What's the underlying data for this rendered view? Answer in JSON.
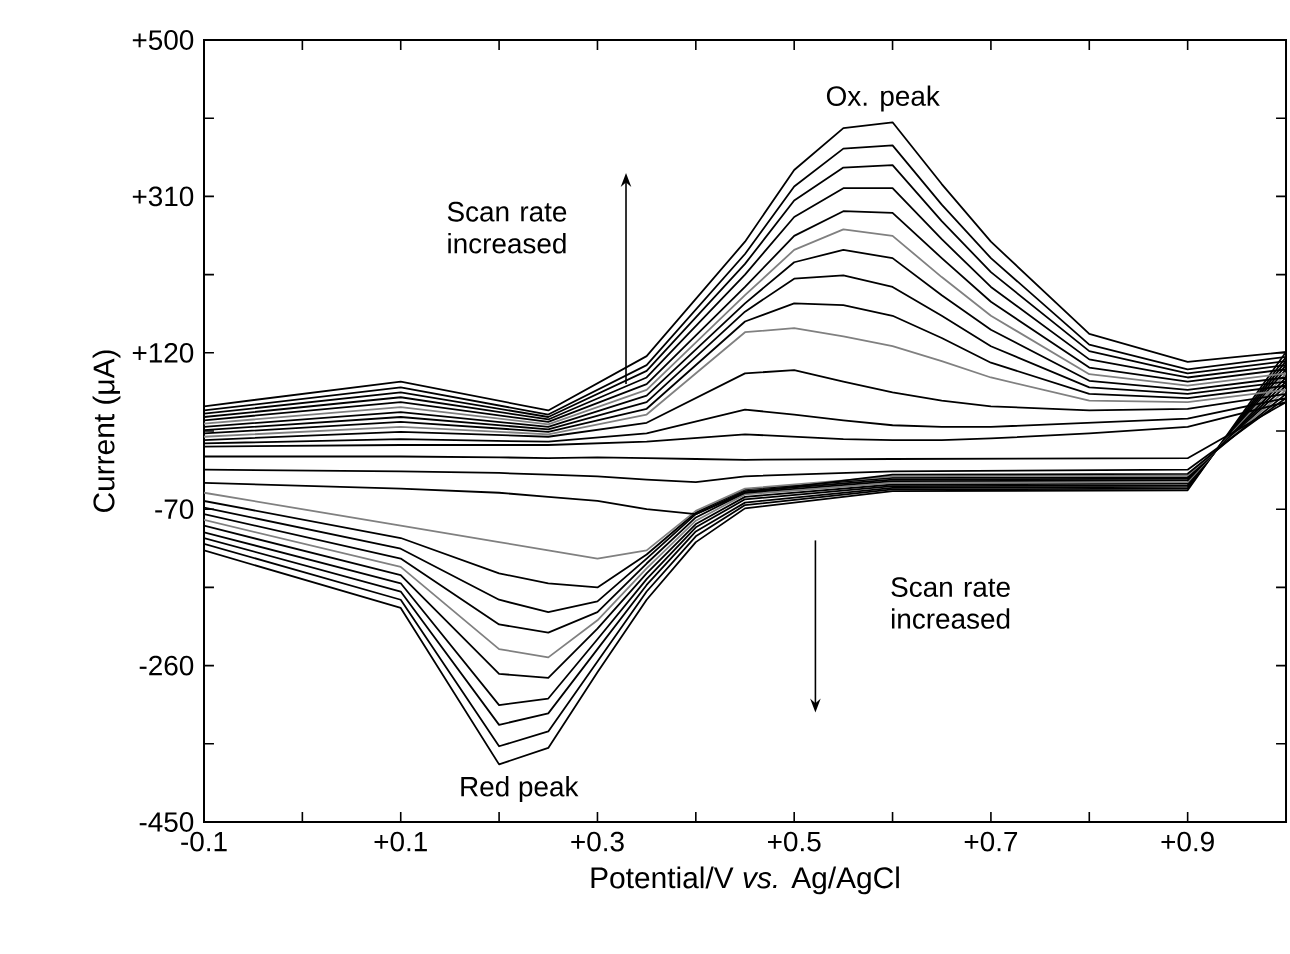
{
  "chart_data": {
    "type": "line",
    "xlabel": "Potential/V *vs.* Ag/AgCl",
    "ylabel": "Current (μA)",
    "x": [
      -0.1,
      0.1,
      0.25,
      0.35,
      0.45,
      0.5,
      0.55,
      0.6,
      0.65,
      0.7,
      0.8,
      0.9,
      1.0,
      0.9,
      0.6,
      0.45,
      0.4,
      0.35,
      0.3,
      0.25,
      0.2,
      0.1,
      -0.1
    ],
    "series": [
      {
        "color": "#000000",
        "values": [
          55,
          85,
          50,
          116,
          255,
          342,
          393,
          400,
          325,
          255,
          143,
          109,
          121,
          -47,
          -48,
          -69,
          -110,
          -180,
          -268,
          -360,
          -380,
          -190,
          -120
        ]
      },
      {
        "color": "#000000",
        "values": [
          50,
          78,
          45,
          105,
          240,
          322,
          368,
          372,
          300,
          235,
          130,
          100,
          115,
          -45,
          -46,
          -65,
          -103,
          -170,
          -255,
          -340,
          -358,
          -180,
          -112
        ]
      },
      {
        "color": "#000000",
        "values": [
          46,
          72,
          42,
          98,
          228,
          305,
          345,
          348,
          280,
          218,
          122,
          95,
          110,
          -43,
          -44,
          -62,
          -97,
          -162,
          -240,
          -318,
          -332,
          -170,
          -105
        ]
      },
      {
        "color": "#000000",
        "values": [
          42,
          66,
          39,
          90,
          215,
          285,
          320,
          320,
          258,
          200,
          112,
          90,
          105,
          -41,
          -42,
          -58,
          -92,
          -155,
          -228,
          -300,
          -308,
          -160,
          -98
        ]
      },
      {
        "color": "#000000",
        "values": [
          38,
          60,
          36,
          82,
          200,
          262,
          292,
          290,
          235,
          182,
          102,
          85,
          100,
          -39,
          -40,
          -55,
          -88,
          -148,
          -215,
          -275,
          -270,
          -150,
          -90
        ]
      },
      {
        "color": "#808080",
        "values": [
          34,
          54,
          33,
          75,
          190,
          245,
          270,
          262,
          212,
          165,
          94,
          80,
          95,
          -37,
          -38,
          -52,
          -84,
          -142,
          -205,
          -250,
          -240,
          -140,
          -83
        ]
      },
      {
        "color": "#000000",
        "values": [
          30,
          48,
          30,
          68,
          180,
          230,
          245,
          235,
          190,
          148,
          86,
          75,
          90,
          -35,
          -36,
          -50,
          -80,
          -136,
          -195,
          -220,
          -210,
          -130,
          -76
        ]
      },
      {
        "color": "#000000",
        "values": [
          26,
          42,
          27,
          60,
          170,
          210,
          214,
          200,
          165,
          128,
          78,
          70,
          85,
          -33,
          -34,
          -48,
          -76,
          -130,
          -182,
          -195,
          -180,
          -118,
          -68
        ]
      },
      {
        "color": "#000000",
        "values": [
          22,
          36,
          24,
          52,
          158,
          180,
          178,
          165,
          138,
          108,
          70,
          65,
          80,
          -31,
          -32,
          -46,
          -74,
          -125,
          -165,
          -160,
          -148,
          -105,
          -60
        ]
      },
      {
        "color": "#808080",
        "values": [
          18,
          30,
          21,
          45,
          145,
          150,
          140,
          128,
          110,
          90,
          62,
          60,
          75,
          -29,
          -30,
          -45,
          -72,
          -120,
          -130,
          -120,
          -110,
          -90,
          -50
        ]
      },
      {
        "color": "#000000",
        "values": [
          14,
          24,
          18,
          35,
          95,
          99,
          85,
          72,
          62,
          55,
          50,
          52,
          70,
          -27,
          -28,
          -50,
          -76,
          -70,
          -60,
          -55,
          -50,
          -45,
          -38
        ]
      },
      {
        "color": "#000000",
        "values": [
          10,
          15,
          12,
          22,
          51,
          45,
          38,
          32,
          30,
          30,
          35,
          40,
          65,
          -22,
          -24,
          -30,
          -37,
          -34,
          -30,
          -28,
          -26,
          -24,
          -22
        ]
      },
      {
        "color": "#000000",
        "values": [
          6,
          8,
          8,
          12,
          21,
          18,
          15,
          14,
          14,
          16,
          22,
          30,
          60,
          -8,
          -9,
          -10,
          -9,
          -8,
          -7,
          -8,
          -7,
          -6,
          -6
        ]
      }
    ],
    "xlim": [
      -0.1,
      1.0
    ],
    "ylim": [
      -450,
      500
    ],
    "xticks": [
      -0.1,
      {
        "value": 0,
        "label": null
      },
      {
        "value": 0.1,
        "label": "+0.1"
      },
      {
        "value": 0.2,
        "label": null
      },
      {
        "value": 0.3,
        "label": "+0.3"
      },
      {
        "value": 0.4,
        "label": null
      },
      {
        "value": 0.5,
        "label": "+0.5"
      },
      {
        "value": 0.6,
        "label": null
      },
      {
        "value": 0.7,
        "label": "+0.7"
      },
      {
        "value": 0.8,
        "label": null
      },
      {
        "value": 0.9,
        "label": "+0.9"
      }
    ],
    "yticks": [
      -450,
      {
        "value": -355,
        "label": null
      },
      -260,
      {
        "value": -165,
        "label": null
      },
      -70,
      {
        "value": 25,
        "label": null
      },
      {
        "value": 120,
        "label": "+120"
      },
      {
        "value": 215,
        "label": null
      },
      {
        "value": 310,
        "label": "+310"
      },
      {
        "value": 405,
        "label": null
      },
      {
        "value": 500,
        "label": "+500"
      }
    ],
    "annotations": [
      {
        "text": "Ox. peak",
        "x": 0.59,
        "y": 403
      },
      {
        "text": "Red peak",
        "x": 0.22,
        "y": -384
      },
      "Scan rate increased",
      "Scan rate increased"
    ],
    "grid": false,
    "marker": "none",
    "line_style": "solid"
  }
}
